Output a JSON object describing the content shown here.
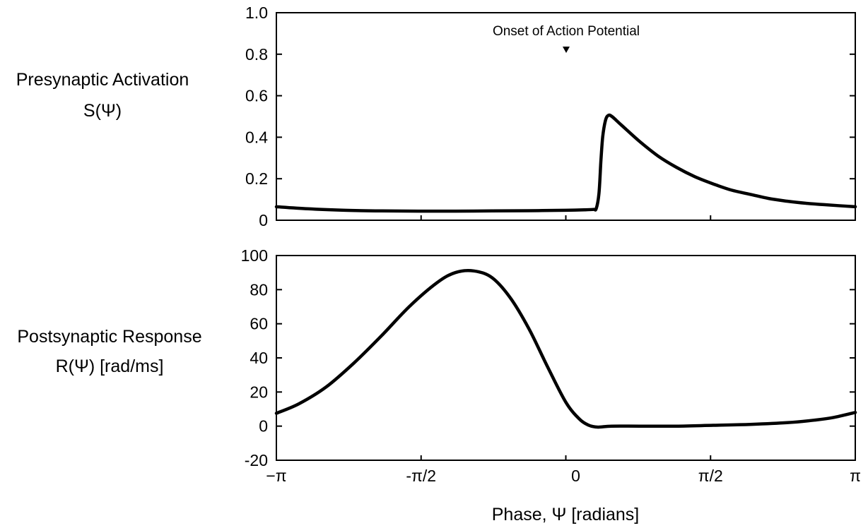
{
  "chart_data": [
    {
      "type": "line",
      "ylabel_line1": "Presynaptic Activation",
      "ylabel_line2": "S(Ψ)",
      "annotation": "Onset of Action Potential",
      "annotation_x": 0,
      "xlim": [
        -3.14159,
        3.14159
      ],
      "ylim": [
        0,
        1.0
      ],
      "yticks": [
        0,
        0.2,
        0.4,
        0.6,
        0.8,
        1.0
      ],
      "ytick_labels": [
        "0",
        "0.2",
        "0.4",
        "0.6",
        "0.8",
        "1.0"
      ],
      "series": [
        {
          "x": [
            -3.1416,
            -2.8,
            -2.4,
            -2.0,
            -1.6,
            -1.2,
            -0.8,
            -0.4,
            0.0,
            0.2,
            0.3,
            0.33,
            0.36,
            0.38,
            0.4,
            0.43,
            0.46,
            0.5,
            0.6,
            0.8,
            1.0,
            1.2,
            1.4,
            1.6,
            1.8,
            2.0,
            2.2,
            2.4,
            2.6,
            2.8,
            3.1416
          ],
          "y": [
            0.065,
            0.055,
            0.048,
            0.045,
            0.044,
            0.044,
            0.045,
            0.046,
            0.048,
            0.05,
            0.052,
            0.056,
            0.13,
            0.28,
            0.4,
            0.48,
            0.505,
            0.5,
            0.46,
            0.38,
            0.31,
            0.255,
            0.21,
            0.175,
            0.145,
            0.125,
            0.105,
            0.092,
            0.082,
            0.075,
            0.065
          ]
        }
      ]
    },
    {
      "type": "line",
      "ylabel_line1": "Postsynaptic Response",
      "ylabel_line2": "R(Ψ) [rad/ms]",
      "xlabel": "Phase, Ψ  [radians]",
      "xlim": [
        -3.14159,
        3.14159
      ],
      "ylim": [
        -20,
        100
      ],
      "yticks": [
        -20,
        0,
        20,
        40,
        60,
        80,
        100
      ],
      "ytick_labels": [
        "-20",
        "0",
        "20",
        "40",
        "60",
        "80",
        "100"
      ],
      "xticks": [
        -3.14159,
        -1.5708,
        0,
        1.5708,
        3.14159
      ],
      "xtick_labels": [
        "−π",
        "-π/2",
        "0",
        "π/2",
        "π"
      ],
      "series": [
        {
          "x": [
            -3.1416,
            -2.9,
            -2.6,
            -2.3,
            -2.0,
            -1.7,
            -1.4,
            -1.2,
            -1.0,
            -0.8,
            -0.6,
            -0.4,
            -0.2,
            0.0,
            0.15,
            0.25,
            0.33,
            0.38,
            0.5,
            0.8,
            1.2,
            1.6,
            2.0,
            2.4,
            2.7,
            2.9,
            3.1416
          ],
          "y": [
            7.5,
            13,
            23,
            37,
            53,
            70,
            84,
            90,
            91,
            87,
            75,
            57,
            35,
            14,
            4,
            0.5,
            -0.5,
            -0.5,
            0,
            0,
            0,
            0.5,
            1,
            2,
            3.5,
            5,
            8
          ]
        }
      ]
    }
  ]
}
